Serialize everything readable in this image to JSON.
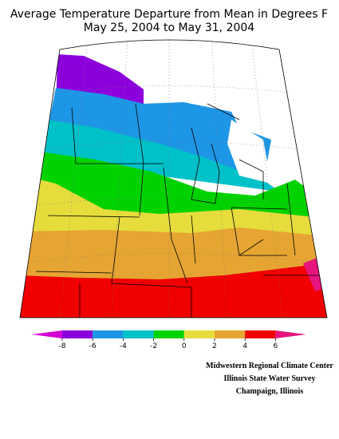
{
  "title": {
    "line1": "Average Temperature Departure from Mean in Degrees F",
    "line2": "May 25, 2004 to May 31, 2004"
  },
  "legend": {
    "ticks": [
      -8,
      -6,
      -4,
      -2,
      0,
      2,
      4,
      6
    ],
    "colors": [
      "#d200d2",
      "#8c00dc",
      "#1e96e6",
      "#00c0c8",
      "#00d200",
      "#e6dc3c",
      "#e6a532",
      "#f00000",
      "#e6147d"
    ]
  },
  "credits": [
    "Midwestern Regional Climate Center",
    "Illinois State Water Survey",
    "Champaign, Illinois"
  ]
}
